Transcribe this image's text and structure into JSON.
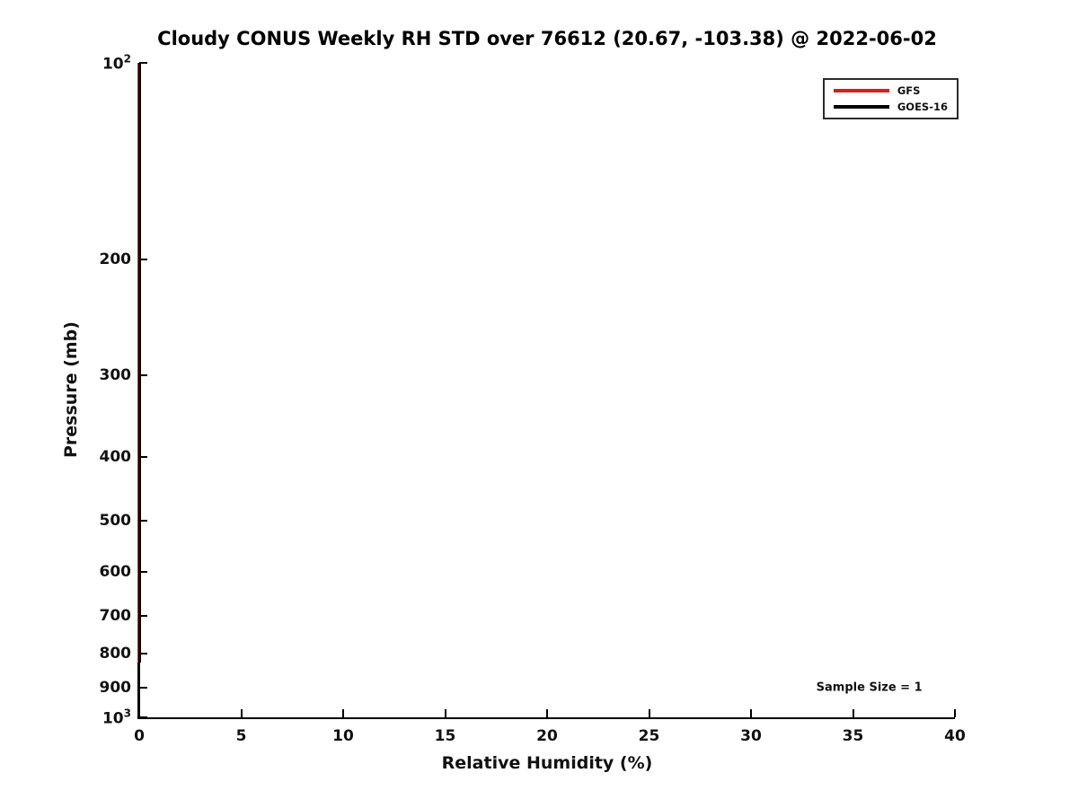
{
  "chart_data": {
    "type": "line",
    "title": "Cloudy CONUS Weekly RH STD over 76612 (20.67, -103.38) @ 2022-06-02",
    "xlabel": "Relative Humidity (%)",
    "ylabel": "Pressure (mb)",
    "xlim": [
      0,
      40
    ],
    "ylim": [
      100,
      1000
    ],
    "yscale": "log",
    "grid": false,
    "tick_direction": "in",
    "x_ticks": [
      0,
      5,
      10,
      15,
      20,
      25,
      30,
      35,
      40
    ],
    "y_ticks": [
      {
        "value": 100,
        "label": "10^2"
      },
      {
        "value": 200,
        "label": "200"
      },
      {
        "value": 300,
        "label": "300"
      },
      {
        "value": 400,
        "label": "400"
      },
      {
        "value": 500,
        "label": "500"
      },
      {
        "value": 600,
        "label": "600"
      },
      {
        "value": 700,
        "label": "700"
      },
      {
        "value": 800,
        "label": "800"
      },
      {
        "value": 900,
        "label": "900"
      },
      {
        "value": 1000,
        "label": "10^3"
      }
    ],
    "series": [
      {
        "name": "GFS",
        "color": "#d81e1e",
        "rh_std": [
          0,
          0
        ],
        "pressure": [
          100,
          825
        ]
      },
      {
        "name": "GOES-16",
        "color": "#000000",
        "rh_std": [
          0,
          0
        ],
        "pressure": [
          100,
          825
        ]
      }
    ],
    "legend_position": "upper right",
    "annotations": [
      {
        "text": "Sample Size = 1",
        "x": 35.8,
        "pressure": 900
      }
    ]
  }
}
